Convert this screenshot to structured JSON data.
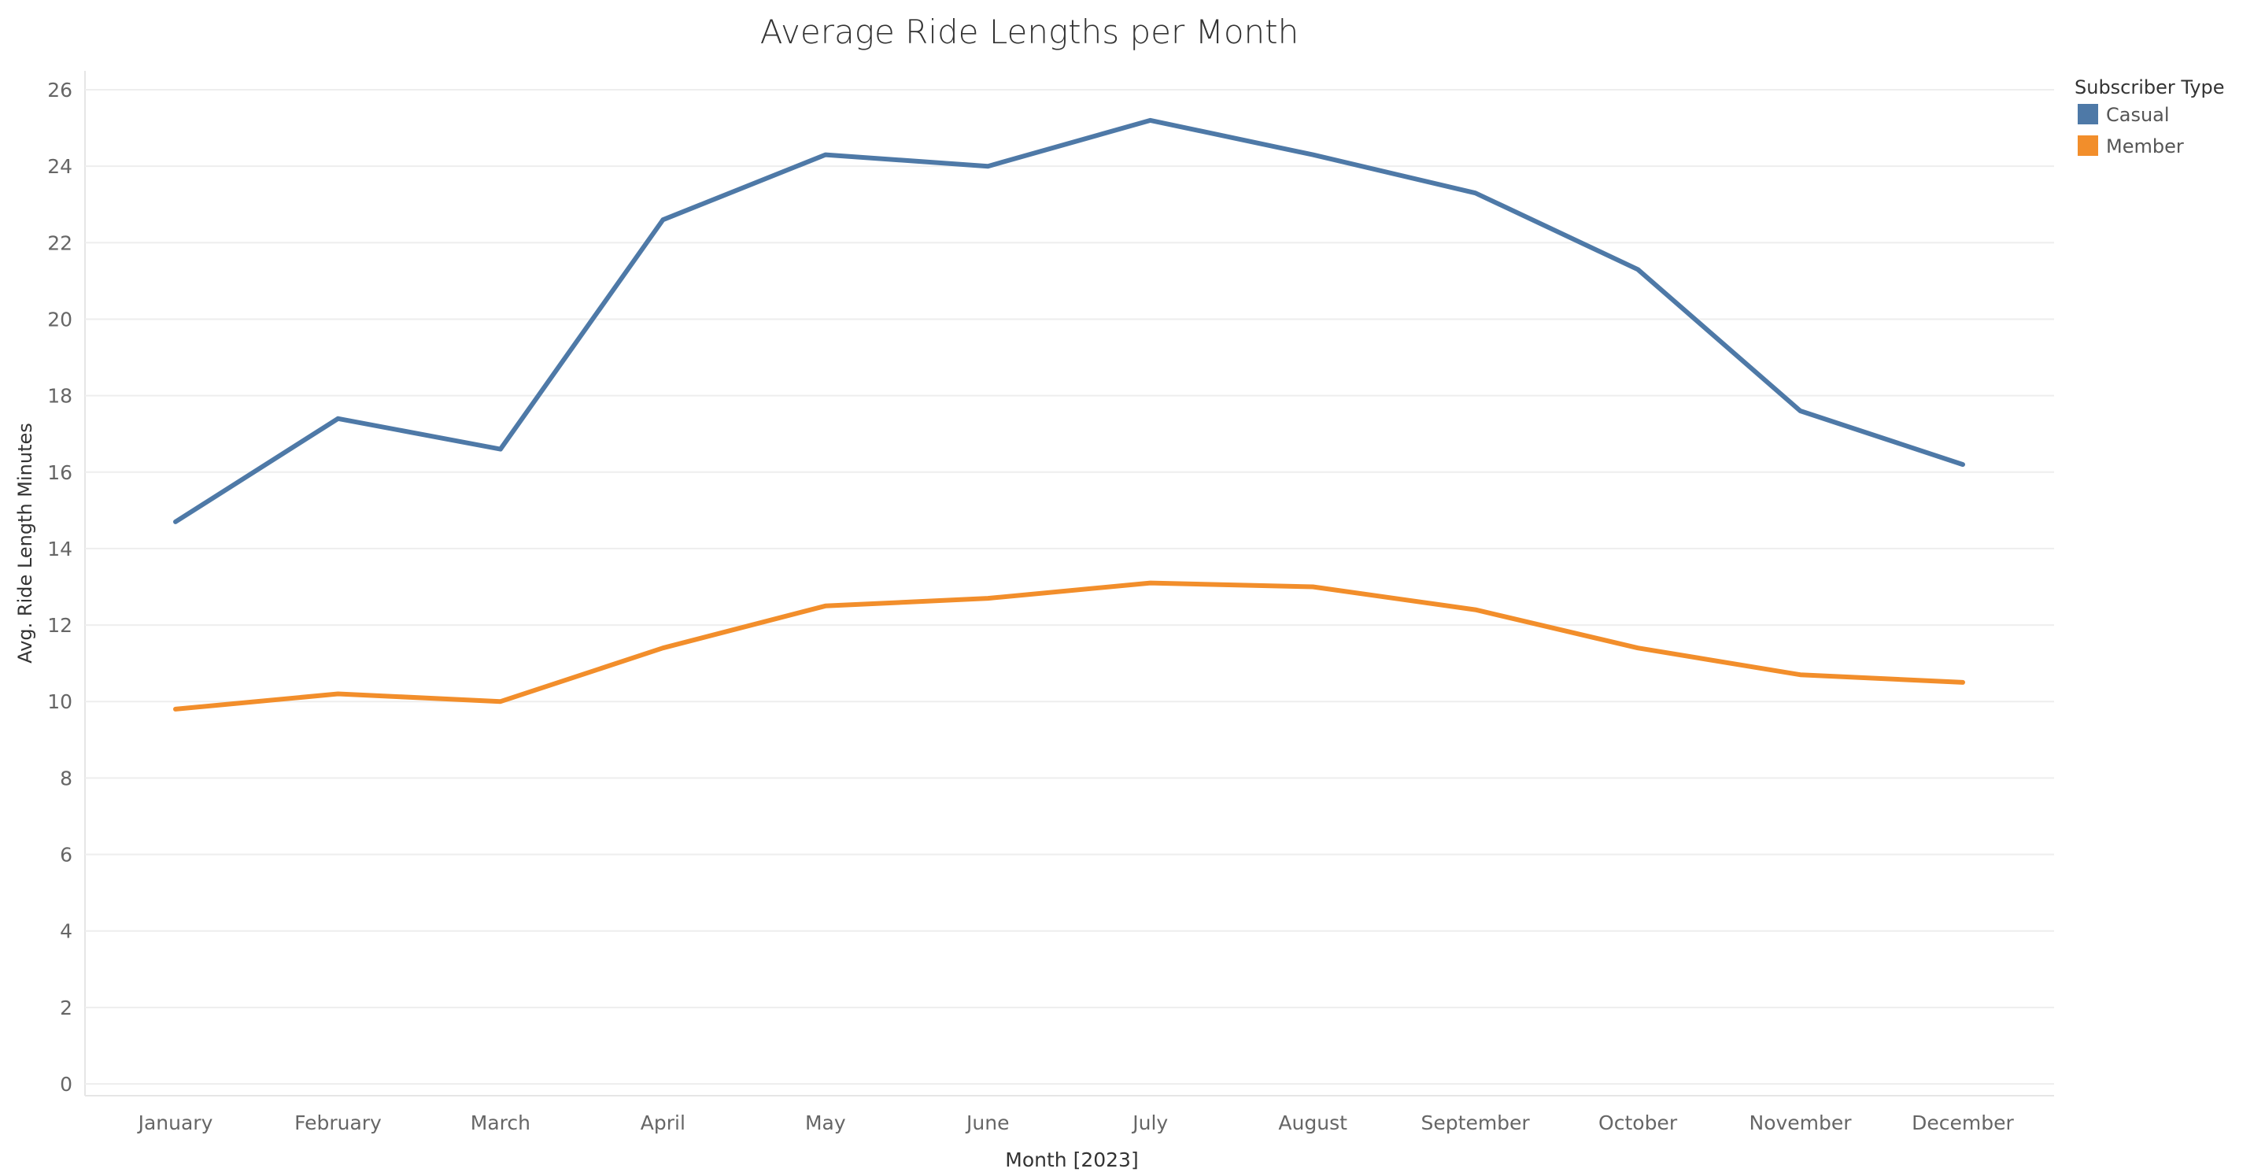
{
  "chart_data": {
    "type": "line",
    "title": "Average Ride Lengths per Month",
    "xlabel": "Month [2023]",
    "ylabel": "Avg. Ride Length Minutes",
    "categories": [
      "January",
      "February",
      "March",
      "April",
      "May",
      "June",
      "July",
      "August",
      "September",
      "October",
      "November",
      "December"
    ],
    "ylim": [
      0,
      26
    ],
    "yticks": [
      0,
      2,
      4,
      6,
      8,
      10,
      12,
      14,
      16,
      18,
      20,
      22,
      24,
      26
    ],
    "grid": true,
    "legend": {
      "title": "Subscriber Type",
      "position": "top-right"
    },
    "series": [
      {
        "name": "Casual",
        "color": "#4e79a7",
        "values": [
          14.7,
          17.4,
          16.6,
          22.6,
          24.3,
          24.0,
          25.2,
          24.3,
          23.3,
          21.3,
          17.6,
          16.2
        ]
      },
      {
        "name": "Member",
        "color": "#f28e2b",
        "values": [
          9.8,
          10.2,
          10.0,
          11.4,
          12.5,
          12.7,
          13.1,
          13.0,
          12.4,
          11.4,
          10.7,
          10.5
        ]
      }
    ]
  }
}
